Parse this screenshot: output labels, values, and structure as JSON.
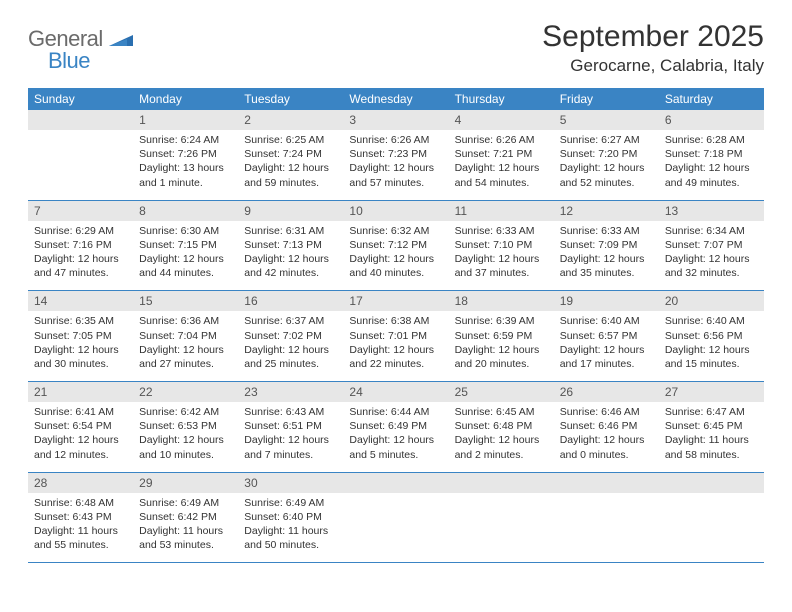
{
  "logo": {
    "general": "General",
    "blue": "Blue"
  },
  "title": "September 2025",
  "location": "Gerocarne, Calabria, Italy",
  "colors": {
    "header_bg": "#3a84c4",
    "header_text": "#ffffff",
    "daynum_bg": "#e7e7e7",
    "border": "#3a84c4",
    "text": "#333333"
  },
  "weekdays": [
    "Sunday",
    "Monday",
    "Tuesday",
    "Wednesday",
    "Thursday",
    "Friday",
    "Saturday"
  ],
  "weeks": [
    [
      null,
      {
        "n": "1",
        "sr": "Sunrise: 6:24 AM",
        "ss": "Sunset: 7:26 PM",
        "dl": "Daylight: 13 hours and 1 minute."
      },
      {
        "n": "2",
        "sr": "Sunrise: 6:25 AM",
        "ss": "Sunset: 7:24 PM",
        "dl": "Daylight: 12 hours and 59 minutes."
      },
      {
        "n": "3",
        "sr": "Sunrise: 6:26 AM",
        "ss": "Sunset: 7:23 PM",
        "dl": "Daylight: 12 hours and 57 minutes."
      },
      {
        "n": "4",
        "sr": "Sunrise: 6:26 AM",
        "ss": "Sunset: 7:21 PM",
        "dl": "Daylight: 12 hours and 54 minutes."
      },
      {
        "n": "5",
        "sr": "Sunrise: 6:27 AM",
        "ss": "Sunset: 7:20 PM",
        "dl": "Daylight: 12 hours and 52 minutes."
      },
      {
        "n": "6",
        "sr": "Sunrise: 6:28 AM",
        "ss": "Sunset: 7:18 PM",
        "dl": "Daylight: 12 hours and 49 minutes."
      }
    ],
    [
      {
        "n": "7",
        "sr": "Sunrise: 6:29 AM",
        "ss": "Sunset: 7:16 PM",
        "dl": "Daylight: 12 hours and 47 minutes."
      },
      {
        "n": "8",
        "sr": "Sunrise: 6:30 AM",
        "ss": "Sunset: 7:15 PM",
        "dl": "Daylight: 12 hours and 44 minutes."
      },
      {
        "n": "9",
        "sr": "Sunrise: 6:31 AM",
        "ss": "Sunset: 7:13 PM",
        "dl": "Daylight: 12 hours and 42 minutes."
      },
      {
        "n": "10",
        "sr": "Sunrise: 6:32 AM",
        "ss": "Sunset: 7:12 PM",
        "dl": "Daylight: 12 hours and 40 minutes."
      },
      {
        "n": "11",
        "sr": "Sunrise: 6:33 AM",
        "ss": "Sunset: 7:10 PM",
        "dl": "Daylight: 12 hours and 37 minutes."
      },
      {
        "n": "12",
        "sr": "Sunrise: 6:33 AM",
        "ss": "Sunset: 7:09 PM",
        "dl": "Daylight: 12 hours and 35 minutes."
      },
      {
        "n": "13",
        "sr": "Sunrise: 6:34 AM",
        "ss": "Sunset: 7:07 PM",
        "dl": "Daylight: 12 hours and 32 minutes."
      }
    ],
    [
      {
        "n": "14",
        "sr": "Sunrise: 6:35 AM",
        "ss": "Sunset: 7:05 PM",
        "dl": "Daylight: 12 hours and 30 minutes."
      },
      {
        "n": "15",
        "sr": "Sunrise: 6:36 AM",
        "ss": "Sunset: 7:04 PM",
        "dl": "Daylight: 12 hours and 27 minutes."
      },
      {
        "n": "16",
        "sr": "Sunrise: 6:37 AM",
        "ss": "Sunset: 7:02 PM",
        "dl": "Daylight: 12 hours and 25 minutes."
      },
      {
        "n": "17",
        "sr": "Sunrise: 6:38 AM",
        "ss": "Sunset: 7:01 PM",
        "dl": "Daylight: 12 hours and 22 minutes."
      },
      {
        "n": "18",
        "sr": "Sunrise: 6:39 AM",
        "ss": "Sunset: 6:59 PM",
        "dl": "Daylight: 12 hours and 20 minutes."
      },
      {
        "n": "19",
        "sr": "Sunrise: 6:40 AM",
        "ss": "Sunset: 6:57 PM",
        "dl": "Daylight: 12 hours and 17 minutes."
      },
      {
        "n": "20",
        "sr": "Sunrise: 6:40 AM",
        "ss": "Sunset: 6:56 PM",
        "dl": "Daylight: 12 hours and 15 minutes."
      }
    ],
    [
      {
        "n": "21",
        "sr": "Sunrise: 6:41 AM",
        "ss": "Sunset: 6:54 PM",
        "dl": "Daylight: 12 hours and 12 minutes."
      },
      {
        "n": "22",
        "sr": "Sunrise: 6:42 AM",
        "ss": "Sunset: 6:53 PM",
        "dl": "Daylight: 12 hours and 10 minutes."
      },
      {
        "n": "23",
        "sr": "Sunrise: 6:43 AM",
        "ss": "Sunset: 6:51 PM",
        "dl": "Daylight: 12 hours and 7 minutes."
      },
      {
        "n": "24",
        "sr": "Sunrise: 6:44 AM",
        "ss": "Sunset: 6:49 PM",
        "dl": "Daylight: 12 hours and 5 minutes."
      },
      {
        "n": "25",
        "sr": "Sunrise: 6:45 AM",
        "ss": "Sunset: 6:48 PM",
        "dl": "Daylight: 12 hours and 2 minutes."
      },
      {
        "n": "26",
        "sr": "Sunrise: 6:46 AM",
        "ss": "Sunset: 6:46 PM",
        "dl": "Daylight: 12 hours and 0 minutes."
      },
      {
        "n": "27",
        "sr": "Sunrise: 6:47 AM",
        "ss": "Sunset: 6:45 PM",
        "dl": "Daylight: 11 hours and 58 minutes."
      }
    ],
    [
      {
        "n": "28",
        "sr": "Sunrise: 6:48 AM",
        "ss": "Sunset: 6:43 PM",
        "dl": "Daylight: 11 hours and 55 minutes."
      },
      {
        "n": "29",
        "sr": "Sunrise: 6:49 AM",
        "ss": "Sunset: 6:42 PM",
        "dl": "Daylight: 11 hours and 53 minutes."
      },
      {
        "n": "30",
        "sr": "Sunrise: 6:49 AM",
        "ss": "Sunset: 6:40 PM",
        "dl": "Daylight: 11 hours and 50 minutes."
      },
      null,
      null,
      null,
      null
    ]
  ]
}
